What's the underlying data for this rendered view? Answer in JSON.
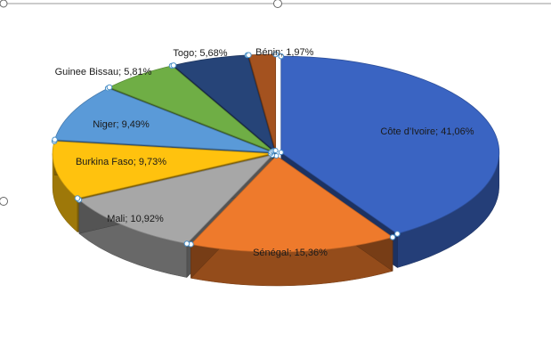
{
  "chart_data": {
    "type": "pie",
    "style": "3d-exploded",
    "slices": [
      {
        "name": "Côte d'Ivoire",
        "value": 41.06,
        "label": "Côte d’Ivoire; 41,06%",
        "color": "#3A64C2"
      },
      {
        "name": "Sénégal",
        "value": 15.36,
        "label": "Sénégal; 15,36%",
        "color": "#EE7A2C"
      },
      {
        "name": "Mali",
        "value": 10.92,
        "label": "Mali; 10,92%",
        "color": "#A7A7A7"
      },
      {
        "name": "Burkina Faso",
        "value": 9.73,
        "label": "Burkina Faso; 9,73%",
        "color": "#FFC20E"
      },
      {
        "name": "Niger",
        "value": 9.49,
        "label": "Niger; 9,49%",
        "color": "#5A9AD8"
      },
      {
        "name": "Guinee Bissau",
        "value": 5.81,
        "label": "Guinee Bissau; 5,81%",
        "color": "#6FAE45"
      },
      {
        "name": "Togo",
        "value": 5.68,
        "label": "Togo; 5,68%",
        "color": "#264478"
      },
      {
        "name": "Bénin",
        "value": 1.97,
        "label": "Bénin; 1,97%",
        "color": "#A4521F"
      }
    ]
  }
}
